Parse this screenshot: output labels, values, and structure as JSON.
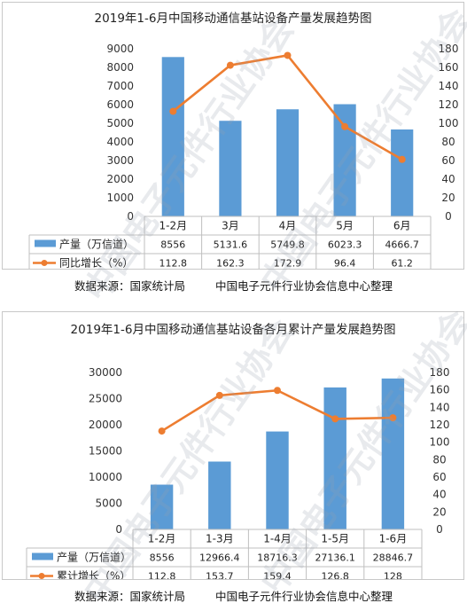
{
  "chart_data": [
    {
      "type": "bar+line",
      "title": "2019年1-6月中国移动通信基站设备产量发展趋势图",
      "categories": [
        "1-2月",
        "3月",
        "4月",
        "5月",
        "6月"
      ],
      "series": [
        {
          "name": "产量（万信道）",
          "kind": "bar",
          "axis": "left",
          "values": [
            8556,
            5131.6,
            5749.8,
            6023.3,
            4666.7
          ],
          "labels": [
            "8556",
            "5131.6",
            "5749.8",
            "6023.3",
            "4666.7"
          ]
        },
        {
          "name": "同比增长（%）",
          "kind": "line",
          "axis": "right",
          "values": [
            112.8,
            162.3,
            172.9,
            96.4,
            61.2
          ],
          "labels": [
            "112.8",
            "162.3",
            "172.9",
            "96.4",
            "61.2"
          ]
        }
      ],
      "ylim_left": [
        0,
        9000
      ],
      "yticks_left": [
        0,
        1000,
        2000,
        3000,
        4000,
        5000,
        6000,
        7000,
        8000,
        9000
      ],
      "ylim_right": [
        0,
        180
      ],
      "yticks_right": [
        0,
        20,
        40,
        60,
        80,
        100,
        120,
        140,
        160,
        180
      ],
      "legend": "data-table",
      "colors": {
        "bar": "#5b9bd5",
        "line": "#ed7d31"
      }
    },
    {
      "type": "bar+line",
      "title": "2019年1-6月中国移动通信基站设备各月累计产量发展趋势图",
      "categories": [
        "1-2月",
        "1-3月",
        "1-4月",
        "1-5月",
        "1-6月"
      ],
      "series": [
        {
          "name": "产量（万信道）",
          "kind": "bar",
          "axis": "left",
          "values": [
            8556,
            12966.4,
            18716.3,
            27136.1,
            28846.7
          ],
          "labels": [
            "8556",
            "12966.4",
            "18716.3",
            "27136.1",
            "28846.7"
          ]
        },
        {
          "name": "累计增长（%）",
          "kind": "line",
          "axis": "right",
          "values": [
            112.8,
            153.7,
            159.4,
            126.8,
            128
          ],
          "labels": [
            "112.8",
            "153.7",
            "159.4",
            "126.8",
            "128"
          ]
        }
      ],
      "ylim_left": [
        0,
        30000
      ],
      "yticks_left": [
        0,
        5000,
        10000,
        15000,
        20000,
        25000,
        30000
      ],
      "ylim_right": [
        0,
        180
      ],
      "yticks_right": [
        0,
        20,
        40,
        60,
        80,
        100,
        120,
        140,
        160,
        180
      ],
      "legend": "data-table",
      "colors": {
        "bar": "#5b9bd5",
        "line": "#ed7d31"
      }
    }
  ],
  "sources": [
    {
      "source": "数据来源：国家统计局",
      "org": "中国电子元件行业协会信息中心整理"
    },
    {
      "source": "数据来源：国家统计局",
      "org": "中国电子元件行业协会信息中心整理"
    }
  ],
  "watermark": "中国电子元件行业协会"
}
